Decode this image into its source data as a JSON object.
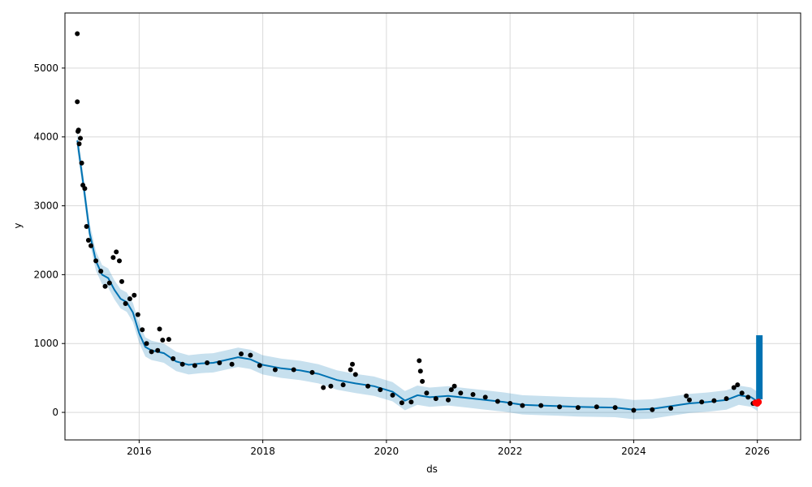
{
  "chart_data": {
    "type": "line",
    "xlabel": "ds",
    "ylabel": "y",
    "x_ticks": [
      "2016",
      "2018",
      "2020",
      "2022",
      "2024",
      "2026"
    ],
    "y_ticks": [
      "0",
      "1000",
      "2000",
      "3000",
      "4000",
      "5000"
    ],
    "xlim": [
      2014.8,
      2026.7
    ],
    "ylim": [
      -400,
      5800
    ],
    "grid": true,
    "colors": {
      "observed": "#000000",
      "forecast": "#0072B2",
      "uncertainty": "#0072B2",
      "highlight": "#ff0000",
      "grid": "#d9d9d9"
    },
    "series": [
      {
        "role": "forecast",
        "x": [
          2015.0,
          2015.1,
          2015.2,
          2015.3,
          2015.4,
          2015.5,
          2015.6,
          2015.7,
          2015.8,
          2015.9,
          2016.0,
          2016.1,
          2016.2,
          2016.3,
          2016.4,
          2016.5,
          2016.6,
          2016.8,
          2017.0,
          2017.2,
          2017.4,
          2017.6,
          2017.8,
          2018.0,
          2018.3,
          2018.6,
          2018.9,
          2019.2,
          2019.5,
          2019.8,
          2020.1,
          2020.3,
          2020.5,
          2020.7,
          2021.0,
          2021.3,
          2021.6,
          2021.9,
          2022.2,
          2022.5,
          2022.8,
          2023.1,
          2023.4,
          2023.7,
          2024.0,
          2024.3,
          2024.6,
          2024.9,
          2025.2,
          2025.5,
          2025.7,
          2025.9,
          2026.0
        ],
        "values": [
          3950,
          3300,
          2600,
          2200,
          2000,
          1950,
          1780,
          1650,
          1600,
          1450,
          1150,
          950,
          900,
          880,
          860,
          800,
          740,
          690,
          710,
          720,
          760,
          800,
          770,
          690,
          640,
          610,
          560,
          470,
          420,
          380,
          300,
          170,
          250,
          220,
          240,
          210,
          180,
          150,
          110,
          100,
          90,
          80,
          75,
          70,
          40,
          50,
          90,
          130,
          150,
          180,
          250,
          220,
          160
        ]
      },
      {
        "role": "observed",
        "points": [
          [
            2015.0,
            5500
          ],
          [
            2015.0,
            4510
          ],
          [
            2015.01,
            4080
          ],
          [
            2015.02,
            4100
          ],
          [
            2015.03,
            3900
          ],
          [
            2015.05,
            3980
          ],
          [
            2015.07,
            3620
          ],
          [
            2015.09,
            3300
          ],
          [
            2015.12,
            3250
          ],
          [
            2015.15,
            2700
          ],
          [
            2015.18,
            2500
          ],
          [
            2015.22,
            2420
          ],
          [
            2015.3,
            2200
          ],
          [
            2015.38,
            2050
          ],
          [
            2015.45,
            1830
          ],
          [
            2015.52,
            1880
          ],
          [
            2015.58,
            2250
          ],
          [
            2015.63,
            2330
          ],
          [
            2015.68,
            2200
          ],
          [
            2015.72,
            1900
          ],
          [
            2015.78,
            1580
          ],
          [
            2015.85,
            1650
          ],
          [
            2015.92,
            1700
          ],
          [
            2015.98,
            1420
          ],
          [
            2016.05,
            1200
          ],
          [
            2016.12,
            1000
          ],
          [
            2016.2,
            880
          ],
          [
            2016.3,
            900
          ],
          [
            2016.33,
            1210
          ],
          [
            2016.38,
            1050
          ],
          [
            2016.48,
            1060
          ],
          [
            2016.55,
            780
          ],
          [
            2016.7,
            700
          ],
          [
            2016.9,
            680
          ],
          [
            2017.1,
            720
          ],
          [
            2017.3,
            720
          ],
          [
            2017.5,
            700
          ],
          [
            2017.65,
            850
          ],
          [
            2017.8,
            830
          ],
          [
            2017.95,
            680
          ],
          [
            2018.2,
            620
          ],
          [
            2018.5,
            620
          ],
          [
            2018.8,
            580
          ],
          [
            2018.98,
            360
          ],
          [
            2019.1,
            380
          ],
          [
            2019.3,
            400
          ],
          [
            2019.42,
            620
          ],
          [
            2019.45,
            700
          ],
          [
            2019.5,
            550
          ],
          [
            2019.7,
            380
          ],
          [
            2019.9,
            330
          ],
          [
            2020.1,
            250
          ],
          [
            2020.25,
            140
          ],
          [
            2020.4,
            150
          ],
          [
            2020.53,
            750
          ],
          [
            2020.55,
            600
          ],
          [
            2020.58,
            450
          ],
          [
            2020.65,
            280
          ],
          [
            2020.8,
            200
          ],
          [
            2021.0,
            180
          ],
          [
            2021.05,
            330
          ],
          [
            2021.1,
            380
          ],
          [
            2021.2,
            280
          ],
          [
            2021.4,
            260
          ],
          [
            2021.6,
            220
          ],
          [
            2021.8,
            160
          ],
          [
            2022.0,
            130
          ],
          [
            2022.2,
            100
          ],
          [
            2022.5,
            100
          ],
          [
            2022.8,
            80
          ],
          [
            2023.1,
            70
          ],
          [
            2023.4,
            80
          ],
          [
            2023.7,
            70
          ],
          [
            2024.0,
            30
          ],
          [
            2024.3,
            40
          ],
          [
            2024.6,
            60
          ],
          [
            2024.85,
            240
          ],
          [
            2024.9,
            180
          ],
          [
            2025.1,
            150
          ],
          [
            2025.3,
            170
          ],
          [
            2025.5,
            200
          ],
          [
            2025.62,
            360
          ],
          [
            2025.68,
            400
          ],
          [
            2025.75,
            280
          ],
          [
            2025.85,
            220
          ],
          [
            2025.93,
            130
          ]
        ]
      },
      {
        "role": "highlight",
        "points": [
          [
            2025.97,
            140
          ],
          [
            2026.0,
            130
          ],
          [
            2026.02,
            150
          ]
        ]
      }
    ],
    "uncertainty_band": {
      "width": 140
    },
    "future_band": {
      "x": [
        2025.98,
        2026.08
      ],
      "lower": 190,
      "upper": 1120
    }
  }
}
